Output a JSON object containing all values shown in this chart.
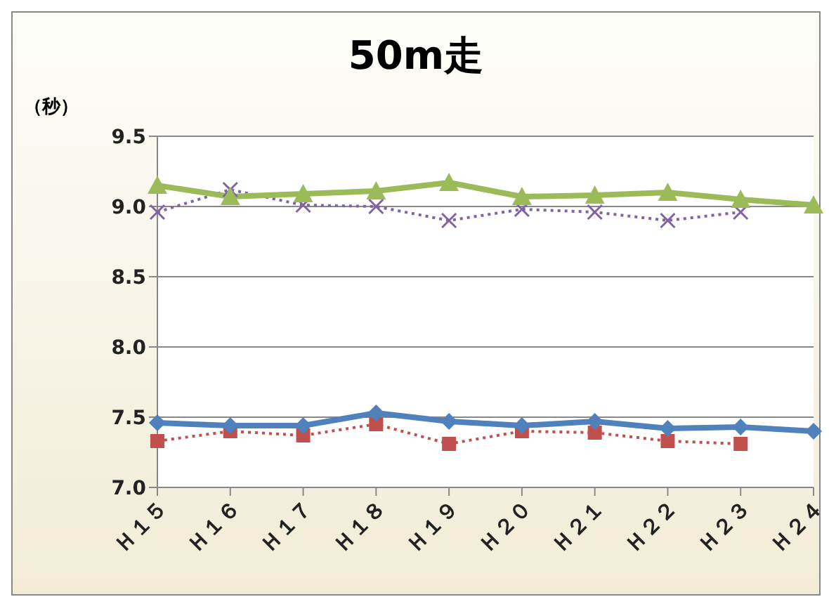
{
  "chart_data": {
    "type": "line",
    "title": "50m走",
    "ylabel": "（秒）",
    "categories": [
      "Ｈ１５",
      "Ｈ１６",
      "Ｈ１７",
      "Ｈ１８",
      "Ｈ１９",
      "Ｈ２０",
      "Ｈ２１",
      "Ｈ２２",
      "Ｈ２３",
      "Ｈ２４"
    ],
    "series": [
      {
        "color": "#9bbb59",
        "marker": "triangle",
        "line_style": "solid",
        "values": [
          9.15,
          9.07,
          9.09,
          9.11,
          9.17,
          9.07,
          9.08,
          9.1,
          9.05,
          9.01
        ]
      },
      {
        "color": "#8064a2",
        "marker": "cross",
        "line_style": "dotted",
        "values": [
          8.96,
          9.12,
          9.01,
          9.0,
          8.9,
          8.98,
          8.96,
          8.9,
          8.96,
          null
        ]
      },
      {
        "color": "#4f81bd",
        "marker": "diamond",
        "line_style": "solid",
        "values": [
          7.46,
          7.44,
          7.44,
          7.53,
          7.47,
          7.44,
          7.47,
          7.42,
          7.43,
          7.4
        ]
      },
      {
        "color": "#c0504d",
        "marker": "square",
        "line_style": "dotted",
        "values": [
          7.33,
          7.4,
          7.37,
          7.45,
          7.31,
          7.4,
          7.39,
          7.33,
          7.31,
          null
        ]
      }
    ],
    "ylim": [
      7.0,
      9.5
    ],
    "yticks": [
      {
        "value": 7,
        "label": "7.0"
      },
      7.5,
      {
        "value": 8,
        "label": "8.0"
      },
      8.5,
      {
        "value": 9,
        "label": "9.0"
      },
      9.5
    ],
    "grid": "y",
    "legend": false
  }
}
